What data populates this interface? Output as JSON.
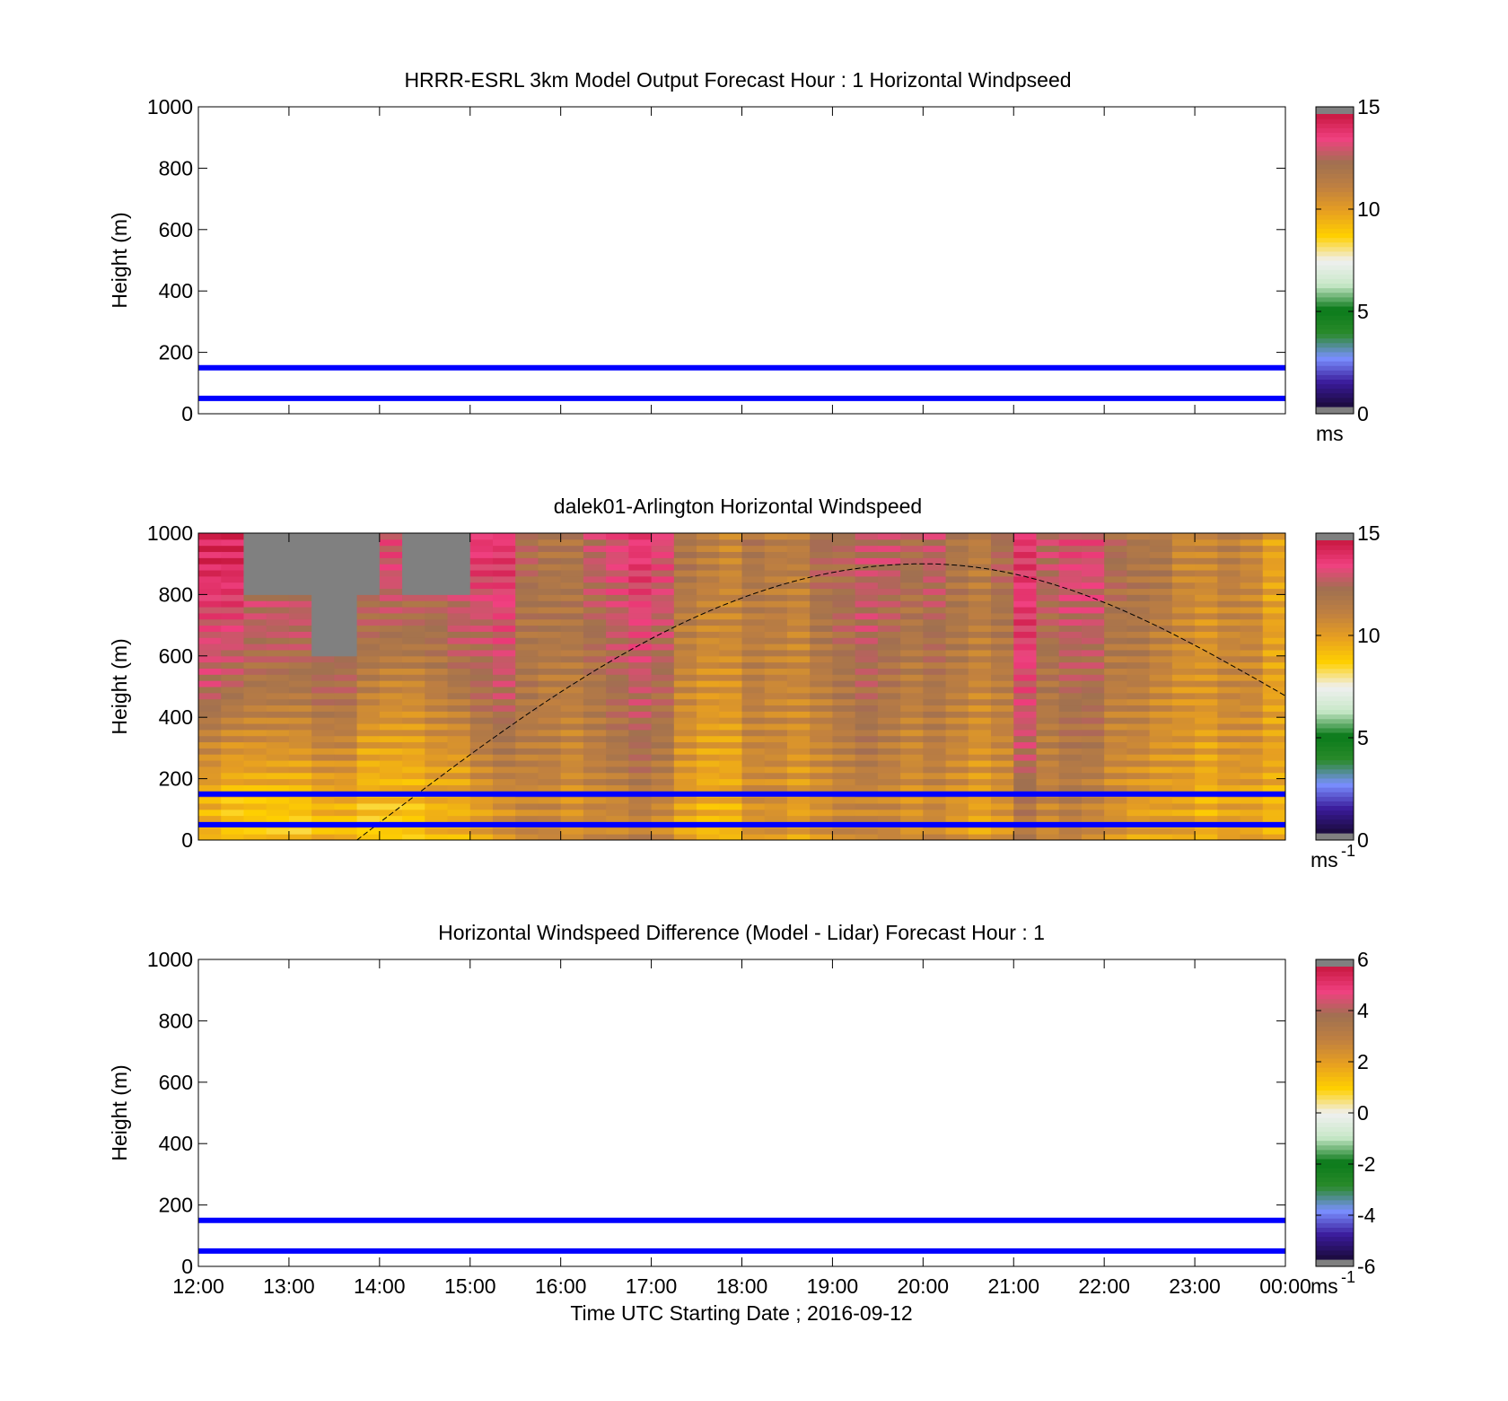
{
  "chart_data": [
    {
      "type": "heatmap",
      "title": "HRRR-ESRL 3km Model Output   Forecast Hour : 1 Horizontal Windpseed",
      "ylabel": "Height (m)",
      "ylim": [
        0,
        1000
      ],
      "yticks": [
        "0",
        "200",
        "400",
        "600",
        "800",
        "1000"
      ],
      "xticks": [],
      "colorbar": {
        "ticks": [
          "0",
          "5",
          "10",
          "15"
        ],
        "range": [
          0,
          15
        ],
        "unit": "ms",
        "unit_sup": ""
      },
      "reference_lines": [
        {
          "height": 50,
          "color": "#0000ff"
        },
        {
          "height": 150,
          "color": "#0000ff"
        }
      ],
      "values": []
    },
    {
      "type": "heatmap",
      "title": "dalek01-Arlington  Horizontal Windspeed",
      "ylabel": "Height (m)",
      "ylim": [
        0,
        1000
      ],
      "yticks": [
        "0",
        "200",
        "400",
        "600",
        "800",
        "1000"
      ],
      "xticks": [],
      "colorbar": {
        "ticks": [
          "0",
          "5",
          "10",
          "15"
        ],
        "range": [
          0,
          15
        ],
        "unit": "ms",
        "unit_sup": "-1"
      },
      "reference_lines": [
        {
          "height": 50,
          "color": "#0000ff"
        },
        {
          "height": 150,
          "color": "#0000ff"
        }
      ],
      "x_hours": [
        12.0,
        12.25,
        12.5,
        12.75,
        13.0,
        13.25,
        13.5,
        13.75,
        14.0,
        14.25,
        14.5,
        14.75,
        15.0,
        15.25,
        15.5,
        15.75,
        16.0,
        16.25,
        16.5,
        16.75,
        17.0,
        17.25,
        17.5,
        17.75,
        18.0,
        18.25,
        18.5,
        18.75,
        19.0,
        19.25,
        19.5,
        19.75,
        20.0,
        20.25,
        20.5,
        20.75,
        21.0,
        21.25,
        21.5,
        21.75,
        22.0,
        22.25,
        22.5,
        22.75,
        23.0,
        23.25,
        23.5,
        23.75
      ],
      "column_profiles_ms": [
        [
          9.5,
          11.0,
          13.0,
          13.5,
          14.5
        ],
        [
          9.0,
          10.5,
          12.5,
          13.5,
          14.5
        ],
        [
          9.0,
          10.5,
          12.0,
          13.0,
          null
        ],
        [
          9.0,
          10.5,
          12.0,
          13.0,
          null
        ],
        [
          9.0,
          10.5,
          12.0,
          13.0,
          null
        ],
        [
          9.5,
          11.0,
          12.5,
          null,
          null
        ],
        [
          9.5,
          11.0,
          12.5,
          null,
          null
        ],
        [
          9.0,
          10.0,
          11.5,
          12.5,
          null
        ],
        [
          9.0,
          10.0,
          11.0,
          12.5,
          13.5
        ],
        [
          9.0,
          10.0,
          11.0,
          12.5,
          null
        ],
        [
          9.5,
          10.5,
          11.5,
          12.5,
          null
        ],
        [
          9.5,
          10.5,
          12.0,
          13.0,
          null
        ],
        [
          10.0,
          11.5,
          12.5,
          13.0,
          14.0
        ],
        [
          10.5,
          12.0,
          13.0,
          13.5,
          14.0
        ],
        [
          11.0,
          11.5,
          12.0,
          12.0,
          12.5
        ],
        [
          11.0,
          11.5,
          11.5,
          12.0,
          12.0
        ],
        [
          10.5,
          11.0,
          11.5,
          12.0,
          12.0
        ],
        [
          11.0,
          11.5,
          12.0,
          12.5,
          13.0
        ],
        [
          11.0,
          12.0,
          12.5,
          13.0,
          13.5
        ],
        [
          11.5,
          12.5,
          13.0,
          13.5,
          14.0
        ],
        [
          11.0,
          12.0,
          12.5,
          13.0,
          13.5
        ],
        [
          10.0,
          10.5,
          11.0,
          11.5,
          12.0
        ],
        [
          9.5,
          10.0,
          10.5,
          11.0,
          11.5
        ],
        [
          9.5,
          10.0,
          10.5,
          11.0,
          11.0
        ],
        [
          10.5,
          11.0,
          11.5,
          11.5,
          12.0
        ],
        [
          10.5,
          11.0,
          11.0,
          11.5,
          11.5
        ],
        [
          10.0,
          10.5,
          11.0,
          11.0,
          11.5
        ],
        [
          10.5,
          11.0,
          11.5,
          12.0,
          12.5
        ],
        [
          11.0,
          11.5,
          12.0,
          12.5,
          12.5
        ],
        [
          11.0,
          12.0,
          12.5,
          13.0,
          13.0
        ],
        [
          11.0,
          11.5,
          12.0,
          12.5,
          13.0
        ],
        [
          10.5,
          11.0,
          11.5,
          12.0,
          12.5
        ],
        [
          11.0,
          11.5,
          12.0,
          12.5,
          13.0
        ],
        [
          10.5,
          11.0,
          11.5,
          12.0,
          12.0
        ],
        [
          10.0,
          10.5,
          11.0,
          11.5,
          11.5
        ],
        [
          10.5,
          11.0,
          11.5,
          12.0,
          12.5
        ],
        [
          12.0,
          13.0,
          13.5,
          14.0,
          14.0
        ],
        [
          11.0,
          11.5,
          12.0,
          12.5,
          13.0
        ],
        [
          11.5,
          12.0,
          12.5,
          13.0,
          13.5
        ],
        [
          11.0,
          12.0,
          12.5,
          13.0,
          13.5
        ],
        [
          10.5,
          11.0,
          11.5,
          12.0,
          12.5
        ],
        [
          10.0,
          11.0,
          11.5,
          12.0,
          12.0
        ],
        [
          10.0,
          10.5,
          11.0,
          11.5,
          12.0
        ],
        [
          10.0,
          10.5,
          10.5,
          11.0,
          11.0
        ],
        [
          9.5,
          10.0,
          10.5,
          10.5,
          11.0
        ],
        [
          10.0,
          10.5,
          11.0,
          11.0,
          11.5
        ],
        [
          10.0,
          10.5,
          11.0,
          11.0,
          11.0
        ],
        [
          9.5,
          10.0,
          10.0,
          10.0,
          10.0
        ]
      ],
      "profile_heights_m": [
        100,
        300,
        500,
        700,
        900
      ],
      "missing_value_color": "#808080",
      "curve": {
        "style": "dashed",
        "color": "#000000",
        "start": [
          13.75,
          0
        ],
        "peak": [
          20.0,
          900
        ],
        "end": [
          24.0,
          470
        ]
      }
    },
    {
      "type": "heatmap",
      "title": "Horizontal Windspeed Difference (Model - Lidar) Forecast Hour : 1",
      "ylabel": "Height (m)",
      "xlabel": "Time UTC  Starting Date ; 2016-09-12",
      "ylim": [
        0,
        1000
      ],
      "yticks": [
        "0",
        "200",
        "400",
        "600",
        "800",
        "1000"
      ],
      "xticks": [
        "12:00",
        "13:00",
        "14:00",
        "15:00",
        "16:00",
        "17:00",
        "18:00",
        "19:00",
        "20:00",
        "21:00",
        "22:00",
        "23:00",
        "00:00"
      ],
      "colorbar": {
        "ticks": [
          "-6",
          "-4",
          "-2",
          "0",
          "2",
          "4",
          "6"
        ],
        "range": [
          -6,
          6
        ],
        "unit": "ms",
        "unit_sup": "-1"
      },
      "reference_lines": [
        {
          "height": 50,
          "color": "#0000ff"
        },
        {
          "height": 150,
          "color": "#0000ff"
        }
      ],
      "values": []
    }
  ],
  "colormap_stops": [
    "#808080",
    "#1a0a3a",
    "#3a1a9a",
    "#7a90ff",
    "#2a8a2a",
    "#0a7a1a",
    "#c8e8c8",
    "#f0f0f0",
    "#ffd000",
    "#e8a020",
    "#c08040",
    "#a07050",
    "#f04080",
    "#c81840",
    "#808080"
  ]
}
